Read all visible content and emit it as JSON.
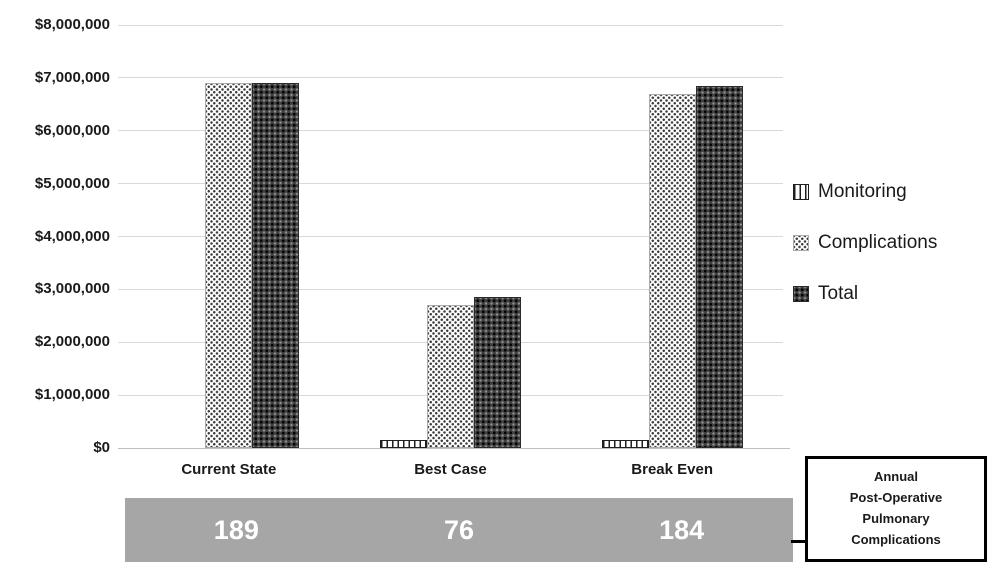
{
  "chart_data": {
    "type": "bar",
    "title": "",
    "categories": [
      "Current State",
      "Best Case",
      "Break Even"
    ],
    "series": [
      {
        "name": "Monitoring",
        "pattern": "vertical-stripes",
        "values": [
          0,
          150000,
          150000
        ]
      },
      {
        "name": "Complications",
        "pattern": "light-dot-grid",
        "values": [
          6900000,
          2700000,
          6700000
        ]
      },
      {
        "name": "Total",
        "pattern": "dark-dot-grid",
        "values": [
          6900000,
          2850000,
          6850000
        ]
      }
    ],
    "xlabel": "",
    "ylabel": "",
    "ylim": [
      0,
      8000000
    ],
    "ytick_step": 1000000,
    "ytick_labels": [
      "$0",
      "$1,000,000",
      "$2,000,000",
      "$3,000,000",
      "$4,000,000",
      "$5,000,000",
      "$6,000,000",
      "$7,000,000",
      "$8,000,000"
    ],
    "grid": true,
    "legend_position": "right"
  },
  "annual_band": {
    "values": [
      "189",
      "76",
      "184"
    ],
    "bg_color": "#a6a6a6",
    "text_color": "#ffffff"
  },
  "annotation_box": {
    "lines": [
      "Annual",
      "Post-Operative",
      "Pulmonary",
      "Complications"
    ],
    "border_color": "#000000"
  },
  "colors": {
    "gridline": "#d9d9d9",
    "axis_line": "#bfbfbf",
    "text": "#1a1a1a"
  }
}
